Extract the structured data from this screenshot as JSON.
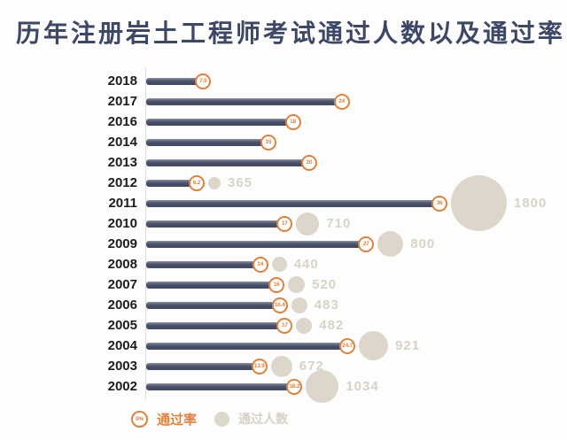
{
  "title": "历年注册岩土工程师考试通过人数以及通过率",
  "legend": {
    "rate_symbol": "0%",
    "rate_label": "通过率",
    "count_label": "通过人数"
  },
  "colors": {
    "title_text": "#3d4766",
    "bar": "#474e68",
    "accent_orange": "#e0813c",
    "bubble_gray": "#dcd7ca",
    "count_text": "#d7d3c6",
    "axis_line": "#dedede"
  },
  "chart_data": {
    "type": "bar",
    "orientation": "horizontal",
    "title": "历年注册岩土工程师考试通过人数以及通过率",
    "xlabel": "",
    "ylabel": "",
    "xlim": [
      0,
      36
    ],
    "grid": false,
    "legend_position": "bottom",
    "categories": [
      "2018",
      "2017",
      "2016",
      "2014",
      "2013",
      "2012",
      "2011",
      "2010",
      "2009",
      "2008",
      "2007",
      "2006",
      "2005",
      "2004",
      "2003",
      "2002"
    ],
    "series": [
      {
        "name": "通过率",
        "unit": "%",
        "values": [
          7.0,
          24,
          18,
          15,
          20,
          6.2,
          36,
          17,
          27,
          14,
          16,
          16.4,
          17,
          24.7,
          13.9,
          18.2
        ]
      },
      {
        "name": "通过人数",
        "unit": "人",
        "values": [
          null,
          null,
          null,
          null,
          null,
          365,
          1800,
          710,
          800,
          440,
          520,
          483,
          482,
          921,
          672,
          1034
        ]
      }
    ],
    "rows": [
      {
        "year": "2018",
        "rate": 7.0,
        "rate_label": "7.0",
        "count": null
      },
      {
        "year": "2017",
        "rate": 24,
        "rate_label": "24",
        "count": null
      },
      {
        "year": "2016",
        "rate": 18,
        "rate_label": "18",
        "count": null
      },
      {
        "year": "2014",
        "rate": 15,
        "rate_label": "15",
        "count": null
      },
      {
        "year": "2013",
        "rate": 20,
        "rate_label": "20",
        "count": null
      },
      {
        "year": "2012",
        "rate": 6.2,
        "rate_label": "6.2",
        "count": 365
      },
      {
        "year": "2011",
        "rate": 36,
        "rate_label": "36",
        "count": 1800
      },
      {
        "year": "2010",
        "rate": 17,
        "rate_label": "17",
        "count": 710
      },
      {
        "year": "2009",
        "rate": 27,
        "rate_label": "27",
        "count": 800
      },
      {
        "year": "2008",
        "rate": 14,
        "rate_label": "14",
        "count": 440
      },
      {
        "year": "2007",
        "rate": 16,
        "rate_label": "16",
        "count": 520
      },
      {
        "year": "2006",
        "rate": 16.4,
        "rate_label": "16.4",
        "count": 483
      },
      {
        "year": "2005",
        "rate": 17,
        "rate_label": "17",
        "count": 482
      },
      {
        "year": "2004",
        "rate": 24.7,
        "rate_label": "24.7",
        "count": 921
      },
      {
        "year": "2003",
        "rate": 13.9,
        "rate_label": "13.9",
        "count": 672
      },
      {
        "year": "2002",
        "rate": 18.2,
        "rate_label": "18.2",
        "count": 1034
      }
    ]
  }
}
